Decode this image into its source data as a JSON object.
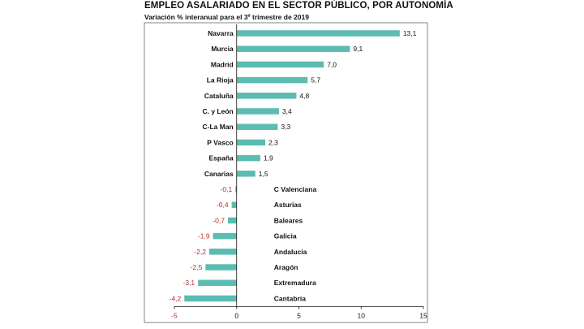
{
  "chart_data": {
    "type": "bar",
    "orientation": "horizontal",
    "title": "EMPLEO ASALARIADO EN EL SECTOR PÚBLICO, POR AUTONOMÍA",
    "subtitle": "Variación % interanual para el 3º trimestre de 2019",
    "categories": [
      "Navarra",
      "Murcia",
      "Madrid",
      "La Rioja",
      "Cataluña",
      "C. y León",
      "C-La Man",
      "P Vasco",
      "España",
      "Canarias",
      "C Valenciana",
      "Asturias",
      "Baleares",
      "Galicia",
      "Andalucia",
      "Aragón",
      "Extremadura",
      "Cantabria"
    ],
    "values": [
      13.1,
      9.1,
      7.0,
      5.7,
      4.8,
      3.4,
      3.3,
      2.3,
      1.9,
      1.5,
      -0.1,
      -0.4,
      -0.7,
      -1.9,
      -2.2,
      -2.5,
      -3.1,
      -4.2
    ],
    "value_labels": [
      "13,1",
      "9,1",
      "7,0",
      "5,7",
      "4,8",
      "3,4",
      "3,3",
      "2,3",
      "1,9",
      "1,5",
      "-0,1",
      "-0,4",
      "-0,7",
      "-1,9",
      "-2,2",
      "-2,5",
      "-3,1",
      "-4,2"
    ],
    "xlim": [
      -5,
      15
    ],
    "xticks": [
      -5,
      0,
      5,
      10,
      15
    ],
    "xtick_labels": [
      "-5",
      "0",
      "5",
      "10",
      "15"
    ],
    "grid": false,
    "legend": "none",
    "colors": {
      "bar": "#5bbcb1",
      "negative_text": "#c0282d",
      "axis": "#111111",
      "frame": "#666666"
    }
  }
}
